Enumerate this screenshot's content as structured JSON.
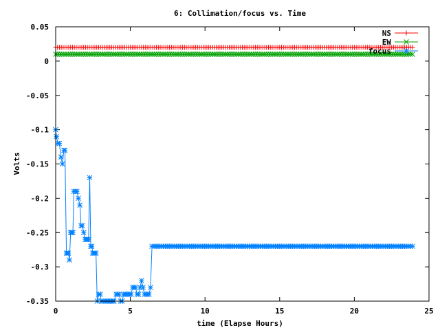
{
  "chart_data": {
    "type": "line",
    "title": "6: Collimation/focus vs. Time",
    "xlabel": "time (Elapse Hours)",
    "ylabel": "Volts",
    "xlim": [
      0,
      25
    ],
    "ylim": [
      -0.35,
      0.05
    ],
    "xticks": [
      0,
      5,
      10,
      15,
      20,
      25
    ],
    "xtick_labels": [
      "0",
      "5",
      "10",
      "15",
      "20",
      "25"
    ],
    "yticks": [
      0.05,
      0,
      -0.05,
      -0.1,
      -0.15,
      -0.2,
      -0.25,
      -0.3,
      -0.35
    ],
    "ytick_labels": [
      "0.05",
      "0",
      "-0.05",
      "-0.1",
      "-0.15",
      "-0.2",
      "-0.25",
      "-0.3",
      "-0.35"
    ],
    "grid": false,
    "legend_position": "top-right",
    "series": [
      {
        "name": "NS",
        "color": "#ff0000",
        "marker": "plus",
        "x": [
          0,
          23.9
        ],
        "y": [
          0.02,
          0.02
        ],
        "sample_every_hours": 0.125
      },
      {
        "name": "EW",
        "color": "#00a000",
        "marker": "cross",
        "x": [
          0,
          23.9
        ],
        "y": [
          0.01,
          0.01
        ],
        "sample_every_hours": 0.125
      },
      {
        "name": "focus",
        "color": "#0080ff",
        "marker": "star",
        "x": [
          0,
          0.05,
          0.15,
          0.25,
          0.35,
          0.45,
          0.55,
          0.62,
          0.72,
          0.78,
          0.85,
          0.92,
          1.0,
          1.08,
          1.15,
          1.22,
          1.32,
          1.42,
          1.52,
          1.62,
          1.7,
          1.78,
          1.88,
          1.98,
          2.05,
          2.12,
          2.2,
          2.28,
          2.35,
          2.42,
          2.48,
          2.55,
          2.62,
          2.7,
          2.78,
          2.88,
          2.98,
          3.05,
          3.15,
          3.3,
          3.5,
          3.7,
          3.9,
          4.05,
          4.15,
          4.25,
          4.35,
          4.45,
          4.55,
          4.65,
          4.75,
          4.85,
          4.95,
          5.05,
          5.15,
          5.25,
          5.35,
          5.45,
          5.55,
          5.65,
          5.75,
          5.85,
          5.95,
          6.05,
          6.15,
          6.25,
          6.35,
          6.45,
          6.6,
          23.9
        ],
        "y": [
          -0.1,
          -0.11,
          -0.12,
          -0.12,
          -0.14,
          -0.15,
          -0.13,
          -0.13,
          -0.28,
          -0.28,
          -0.28,
          -0.29,
          -0.25,
          -0.25,
          -0.25,
          -0.19,
          -0.19,
          -0.19,
          -0.2,
          -0.21,
          -0.24,
          -0.24,
          -0.25,
          -0.26,
          -0.26,
          -0.26,
          -0.26,
          -0.17,
          -0.27,
          -0.27,
          -0.28,
          -0.28,
          -0.28,
          -0.28,
          -0.35,
          -0.34,
          -0.34,
          -0.35,
          -0.35,
          -0.35,
          -0.35,
          -0.35,
          -0.35,
          -0.34,
          -0.34,
          -0.34,
          -0.35,
          -0.35,
          -0.34,
          -0.34,
          -0.34,
          -0.34,
          -0.34,
          -0.34,
          -0.33,
          -0.33,
          -0.33,
          -0.34,
          -0.34,
          -0.33,
          -0.32,
          -0.33,
          -0.34,
          -0.34,
          -0.34,
          -0.34,
          -0.33,
          -0.27,
          -0.27,
          -0.27
        ],
        "sample_every_hours": 0.125
      }
    ]
  }
}
